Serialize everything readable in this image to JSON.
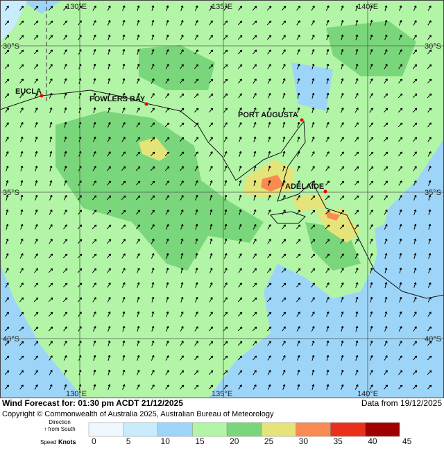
{
  "map": {
    "grid_labels": {
      "top": [
        "130°E",
        "135°E",
        "140°E"
      ],
      "bottom": [
        "130°E",
        "135°E",
        "140°E"
      ],
      "left": [
        "30°S",
        "35°S",
        "40°S"
      ],
      "right": [
        "30°S",
        "35°S",
        "40°S"
      ]
    },
    "places": [
      "EUCLA",
      "FOWLERS BAY",
      "PORT AUGUSTA",
      "ADELAIDE"
    ]
  },
  "footer": {
    "forecast": "Wind Forecast for: 01:30 pm ACDT 21/12/2025",
    "data_from": "Data from 19/12/2025",
    "copyright": "Copyright © Commonwealth of Australia 2025, Australian Bureau of Meteorology"
  },
  "legend": {
    "direction": "Direction",
    "direction_note": "↑ from South",
    "speed": "Speed",
    "units": "Knots",
    "levels": [
      0,
      5,
      10,
      15,
      20,
      25,
      30,
      35,
      40,
      45
    ],
    "colors": [
      "#eef8fe",
      "#c8ecfb",
      "#9dd5f9",
      "#b2f5a6",
      "#7ad67a",
      "#e4e47a",
      "#f98a52",
      "#e8301a",
      "#a00000"
    ]
  }
}
